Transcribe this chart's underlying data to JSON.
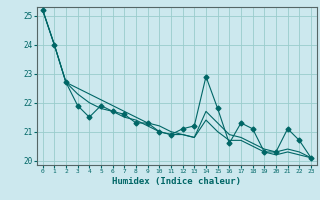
{
  "xlabel": "Humidex (Indice chaleur)",
  "bg_color": "#cce8ee",
  "line_color": "#006666",
  "grid_color": "#99cccc",
  "x_data": [
    0,
    1,
    2,
    3,
    4,
    5,
    6,
    7,
    8,
    9,
    10,
    11,
    12,
    13,
    14,
    15,
    16,
    17,
    18,
    19,
    20,
    21,
    22,
    23
  ],
  "y_main": [
    25.2,
    24.0,
    22.7,
    21.9,
    21.5,
    21.9,
    21.7,
    21.6,
    21.3,
    21.3,
    21.0,
    20.9,
    21.1,
    21.2,
    22.9,
    21.8,
    20.6,
    21.3,
    21.1,
    20.3,
    20.3,
    21.1,
    20.7,
    20.1
  ],
  "y_trend1": [
    25.2,
    24.0,
    22.7,
    22.5,
    22.3,
    22.1,
    21.9,
    21.7,
    21.5,
    21.3,
    21.2,
    21.0,
    20.9,
    20.8,
    21.7,
    21.3,
    20.9,
    20.8,
    20.6,
    20.4,
    20.3,
    20.4,
    20.3,
    20.1
  ],
  "y_trend2": [
    25.2,
    24.0,
    22.7,
    22.3,
    22.0,
    21.8,
    21.7,
    21.5,
    21.4,
    21.2,
    21.0,
    20.9,
    20.9,
    20.8,
    21.4,
    21.0,
    20.7,
    20.7,
    20.5,
    20.3,
    20.2,
    20.3,
    20.2,
    20.1
  ],
  "ylim": [
    19.85,
    25.3
  ],
  "xlim": [
    -0.5,
    23.5
  ],
  "yticks": [
    20,
    21,
    22,
    23,
    24,
    25
  ],
  "xticks": [
    0,
    1,
    2,
    3,
    4,
    5,
    6,
    7,
    8,
    9,
    10,
    11,
    12,
    13,
    14,
    15,
    16,
    17,
    18,
    19,
    20,
    21,
    22,
    23
  ],
  "tick_color": "#006666",
  "spine_color": "#556666"
}
